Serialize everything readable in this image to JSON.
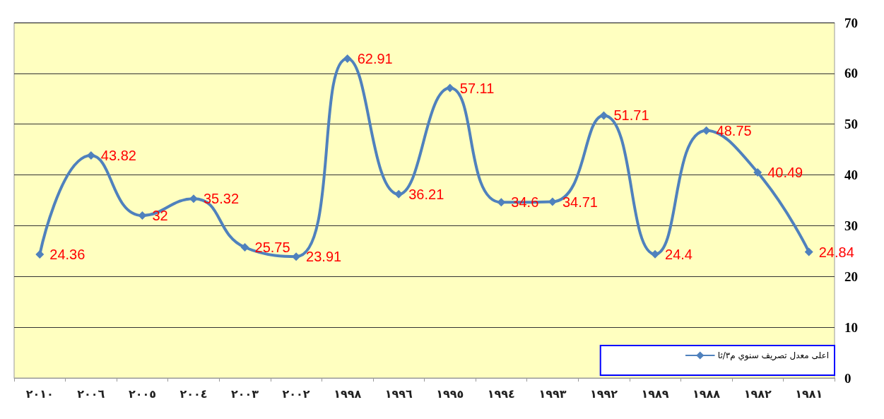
{
  "chart_data": {
    "type": "line",
    "categories": [
      "٢٠١٠",
      "٢٠٠٦",
      "٢٠٠٥",
      "٢٠٠٤",
      "٢٠٠٣",
      "٢٠٠٢",
      "١٩٩٨",
      "١٩٩٦",
      "١٩٩٥",
      "١٩٩٤",
      "١٩٩٣",
      "١٩٩٢",
      "١٩٨٩",
      "١٩٨٨",
      "١٩٨٢",
      "١٩٨١"
    ],
    "series": [
      {
        "name": "اعلى معدل تصريف سنوي م٣/ثا",
        "color": "#4f81bd",
        "values": [
          24.36,
          43.82,
          32,
          35.32,
          25.75,
          23.91,
          62.91,
          36.21,
          57.11,
          34.6,
          34.71,
          51.71,
          24.4,
          48.75,
          40.49,
          24.84
        ]
      }
    ],
    "ylim": [
      0,
      70
    ],
    "yticks": [
      0,
      10,
      20,
      30,
      40,
      50,
      60,
      70
    ],
    "grid": "y",
    "legend": "bottom right",
    "marker": "diamond",
    "line_style": "solid",
    "data_labels": true
  }
}
